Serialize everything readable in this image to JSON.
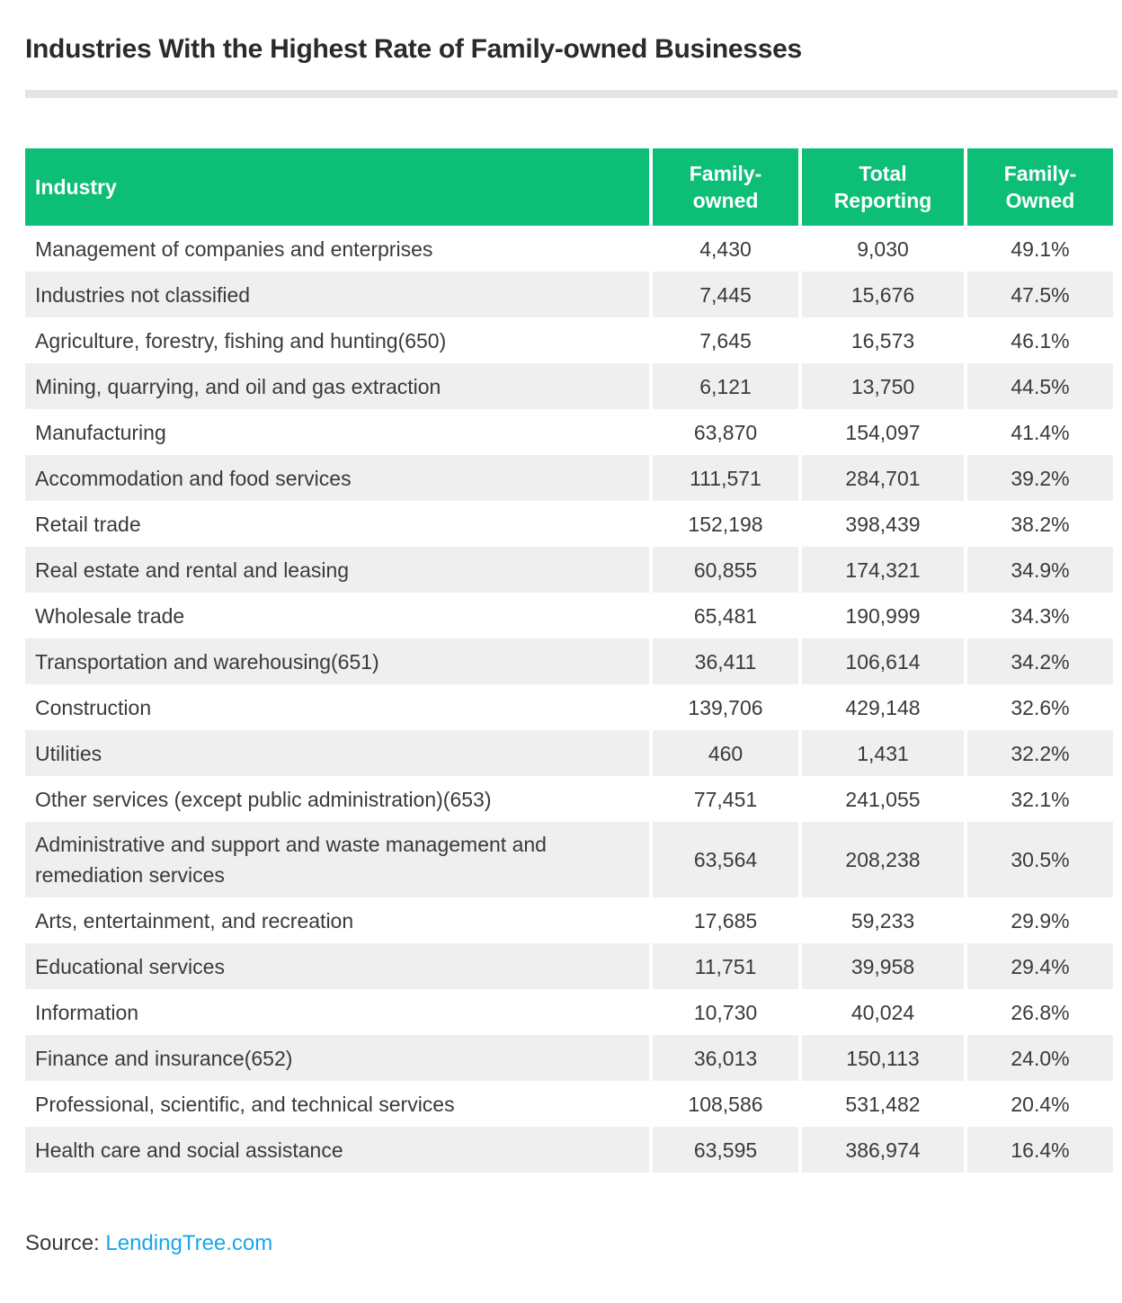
{
  "title": "Industries With the Highest Rate of Family-owned Businesses",
  "colors": {
    "header_green": "#0dbe77",
    "alt_row_gray": "#efefef",
    "divider_gray": "#e4e4e4",
    "link_blue": "#18a7e8",
    "text_dark": "#3a3a3a"
  },
  "table": {
    "columns": [
      "Industry",
      "Family-\nowned",
      "Total\nReporting",
      "Family-\nOwned"
    ],
    "rows": [
      {
        "industry": "Management of companies and enterprises",
        "family_owned": "4,430",
        "total_reporting": "9,030",
        "family_owned_pct": "49.1%"
      },
      {
        "industry": "Industries not classified",
        "family_owned": "7,445",
        "total_reporting": "15,676",
        "family_owned_pct": "47.5%"
      },
      {
        "industry": "Agriculture, forestry, fishing and hunting(650)",
        "family_owned": "7,645",
        "total_reporting": "16,573",
        "family_owned_pct": "46.1%"
      },
      {
        "industry": "Mining, quarrying, and oil and gas extraction",
        "family_owned": "6,121",
        "total_reporting": "13,750",
        "family_owned_pct": "44.5%"
      },
      {
        "industry": "Manufacturing",
        "family_owned": "63,870",
        "total_reporting": "154,097",
        "family_owned_pct": "41.4%"
      },
      {
        "industry": "Accommodation and food services",
        "family_owned": "111,571",
        "total_reporting": "284,701",
        "family_owned_pct": "39.2%"
      },
      {
        "industry": "Retail trade",
        "family_owned": "152,198",
        "total_reporting": "398,439",
        "family_owned_pct": "38.2%"
      },
      {
        "industry": "Real estate and rental and leasing",
        "family_owned": "60,855",
        "total_reporting": "174,321",
        "family_owned_pct": "34.9%"
      },
      {
        "industry": "Wholesale trade",
        "family_owned": "65,481",
        "total_reporting": "190,999",
        "family_owned_pct": "34.3%"
      },
      {
        "industry": "Transportation and warehousing(651)",
        "family_owned": "36,411",
        "total_reporting": "106,614",
        "family_owned_pct": "34.2%"
      },
      {
        "industry": "Construction",
        "family_owned": "139,706",
        "total_reporting": "429,148",
        "family_owned_pct": "32.6%"
      },
      {
        "industry": "Utilities",
        "family_owned": "460",
        "total_reporting": "1,431",
        "family_owned_pct": "32.2%"
      },
      {
        "industry": "Other services (except public administration)(653)",
        "family_owned": "77,451",
        "total_reporting": "241,055",
        "family_owned_pct": "32.1%"
      },
      {
        "industry": "Administrative and support and waste management and remediation services",
        "family_owned": "63,564",
        "total_reporting": "208,238",
        "family_owned_pct": "30.5%"
      },
      {
        "industry": "Arts, entertainment, and recreation",
        "family_owned": "17,685",
        "total_reporting": "59,233",
        "family_owned_pct": "29.9%"
      },
      {
        "industry": "Educational services",
        "family_owned": "11,751",
        "total_reporting": "39,958",
        "family_owned_pct": "29.4%"
      },
      {
        "industry": "Information",
        "family_owned": "10,730",
        "total_reporting": "40,024",
        "family_owned_pct": "26.8%"
      },
      {
        "industry": "Finance and insurance(652)",
        "family_owned": "36,013",
        "total_reporting": "150,113",
        "family_owned_pct": "24.0%"
      },
      {
        "industry": "Professional, scientific, and technical services",
        "family_owned": "108,586",
        "total_reporting": "531,482",
        "family_owned_pct": "20.4%"
      },
      {
        "industry": "Health care and social assistance",
        "family_owned": "63,595",
        "total_reporting": "386,974",
        "family_owned_pct": "16.4%"
      }
    ]
  },
  "source": {
    "label": "Source: ",
    "link": "LendingTree.com"
  },
  "chart_data": {
    "type": "table",
    "title": "Industries With the Highest Rate of Family-owned Businesses",
    "columns": [
      "Industry",
      "Family-owned",
      "Total Reporting",
      "Family-Owned"
    ],
    "rows": [
      [
        "Management of companies and enterprises",
        4430,
        9030,
        49.1
      ],
      [
        "Industries not classified",
        7445,
        15676,
        47.5
      ],
      [
        "Agriculture, forestry, fishing and hunting(650)",
        7645,
        16573,
        46.1
      ],
      [
        "Mining, quarrying, and oil and gas extraction",
        6121,
        13750,
        44.5
      ],
      [
        "Manufacturing",
        63870,
        154097,
        41.4
      ],
      [
        "Accommodation and food services",
        111571,
        284701,
        39.2
      ],
      [
        "Retail trade",
        152198,
        398439,
        38.2
      ],
      [
        "Real estate and rental and leasing",
        60855,
        174321,
        34.9
      ],
      [
        "Wholesale trade",
        65481,
        190999,
        34.3
      ],
      [
        "Transportation and warehousing(651)",
        36411,
        106614,
        34.2
      ],
      [
        "Construction",
        139706,
        429148,
        32.6
      ],
      [
        "Utilities",
        460,
        1431,
        32.2
      ],
      [
        "Other services (except public administration)(653)",
        77451,
        241055,
        32.1
      ],
      [
        "Administrative and support and waste management and remediation services",
        63564,
        208238,
        30.5
      ],
      [
        "Arts, entertainment, and recreation",
        17685,
        59233,
        29.9
      ],
      [
        "Educational services",
        11751,
        39958,
        29.4
      ],
      [
        "Information",
        10730,
        40024,
        26.8
      ],
      [
        "Finance and insurance(652)",
        36013,
        150113,
        24.0
      ],
      [
        "Professional, scientific, and technical services",
        108586,
        531482,
        20.4
      ],
      [
        "Health care and social assistance",
        63595,
        386974,
        16.4
      ]
    ],
    "units": {
      "Family-owned": "count",
      "Total Reporting": "count",
      "Family-Owned": "percent"
    },
    "source": "LendingTree.com"
  }
}
